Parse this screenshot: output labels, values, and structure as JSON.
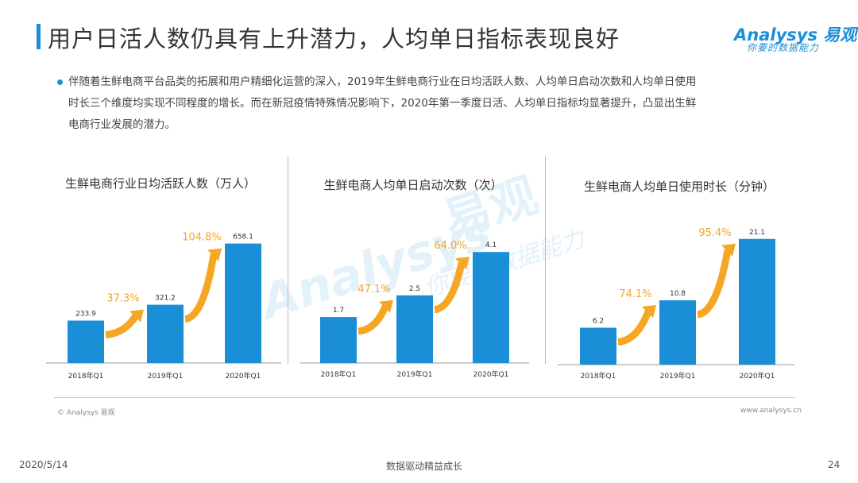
{
  "header": {
    "title": "用户日活人数仍具有上升潜力，人均单日指标表现良好",
    "logo_main": "Analysys 易观",
    "logo_sub": "你要的数据能力"
  },
  "bullet": {
    "lines": [
      "伴随着生鲜电商平台品类的拓展和用户精细化运营的深入，2019年生鲜电商行业在日均活跃人数、人均单日启动次数和人均单日使用",
      "时长三个维度均实现不同程度的增长。而在新冠疫情特殊情况影响下，2020年第一季度日活、人均单日指标均显著提升，凸显出生鲜",
      "电商行业发展的潜力。"
    ]
  },
  "watermark": {
    "brand": "Analysys",
    "name": "易观",
    "slogan": "你要的数据能力"
  },
  "colors": {
    "accent": "#1a8fd8",
    "bar": "#1a8fd8",
    "growth": "#f5a623"
  },
  "chart_data": [
    {
      "type": "bar",
      "title": "生鲜电商行业日均活跃人数（万人）",
      "categories": [
        "2018年Q1",
        "2019年Q1",
        "2020年Q1"
      ],
      "values": [
        233.9,
        321.2,
        658.1
      ],
      "value_labels": [
        "233.9",
        "321.2",
        "658.1"
      ],
      "growth_labels": [
        "37.3%",
        "104.8%"
      ],
      "ylim": [
        0,
        700
      ]
    },
    {
      "type": "bar",
      "title": "生鲜电商人均单日启动次数（次）",
      "categories": [
        "2018年Q1",
        "2019年Q1",
        "2020年Q1"
      ],
      "values": [
        1.7,
        2.5,
        4.1
      ],
      "value_labels": [
        "1.7",
        "2.5",
        "4.1"
      ],
      "growth_labels": [
        "47.1%",
        "64.0%"
      ],
      "ylim": [
        0,
        4.4
      ]
    },
    {
      "type": "bar",
      "title": "生鲜电商人均单日使用时长（分钟）",
      "categories": [
        "2018年Q1",
        "2019年Q1",
        "2020年Q1"
      ],
      "values": [
        6.2,
        10.8,
        21.1
      ],
      "value_labels": [
        "6.2",
        "10.8",
        "21.1"
      ],
      "growth_labels": [
        "74.1%",
        "95.4%"
      ],
      "ylim": [
        0,
        22.4
      ]
    }
  ],
  "footer": {
    "copyright": "© Analysys 易观",
    "website": "www.analysys.cn",
    "date": "2020/5/14",
    "slogan": "数据驱动精益成长",
    "page": "24"
  }
}
